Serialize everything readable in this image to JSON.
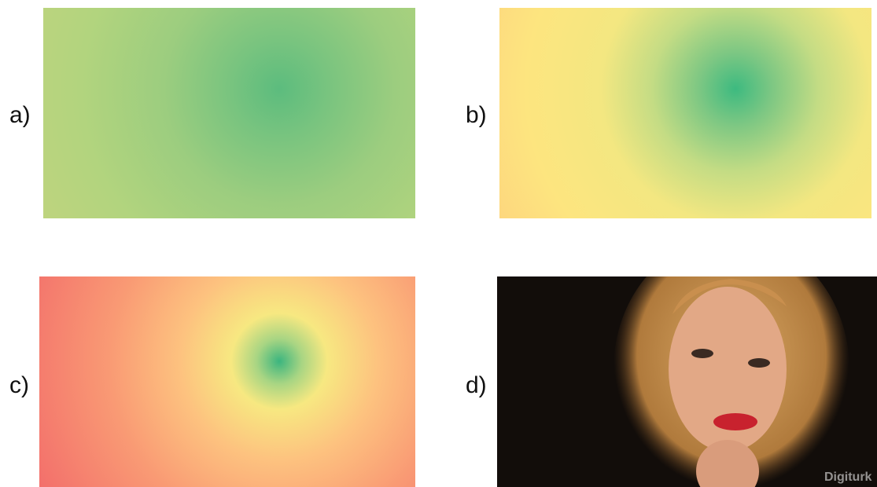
{
  "panels": [
    {
      "label": "a)"
    },
    {
      "label": "b)"
    },
    {
      "label": "c)"
    },
    {
      "label": "d)",
      "watermark": "Digiturk"
    }
  ]
}
